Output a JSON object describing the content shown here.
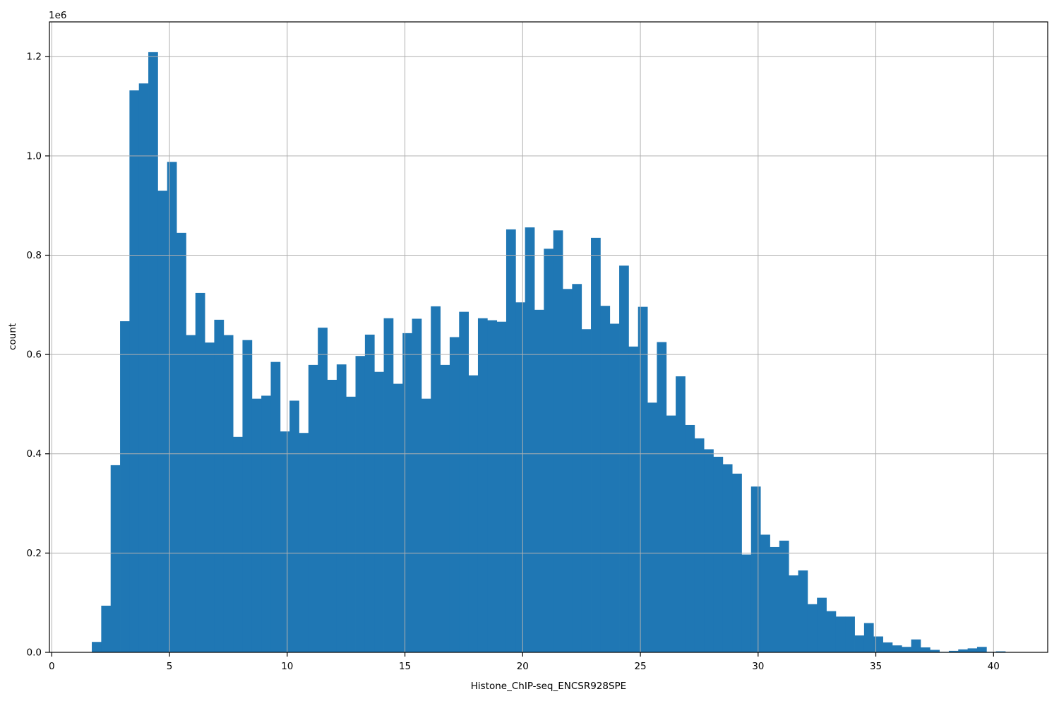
{
  "chart_data": {
    "type": "bar",
    "subtype": "histogram",
    "title": "",
    "xlabel": "Histone_ChIP-seq_ENCSR928SPE",
    "ylabel": "count",
    "y_axis_offset_text": "1e6",
    "x_tick_values": [
      0,
      5,
      10,
      15,
      20,
      25,
      30,
      35,
      40
    ],
    "x_tick_labels": [
      "0",
      "5",
      "10",
      "15",
      "20",
      "25",
      "30",
      "35",
      "40"
    ],
    "y_tick_values": [
      0,
      200000,
      400000,
      600000,
      800000,
      1000000,
      1200000
    ],
    "y_tick_labels": [
      "0.0",
      "0.2",
      "0.4",
      "0.6",
      "0.8",
      "1.0",
      "1.2"
    ],
    "xlim": [
      -0.1,
      42.3
    ],
    "ylim": [
      0,
      1270000
    ],
    "grid": true,
    "grid_above_bars": true,
    "legend": false,
    "bar_color": "#1f77b4",
    "grid_color": "#b0b0b0",
    "spine_color": "#000000",
    "bins": {
      "start": 1.7,
      "width": 0.4
    },
    "counts": [
      21000,
      94000,
      377000,
      667000,
      1132000,
      1146000,
      1209000,
      930000,
      988000,
      845000,
      639000,
      724000,
      624000,
      670000,
      639000,
      434000,
      629000,
      511000,
      517000,
      585000,
      445000,
      507000,
      442000,
      579000,
      654000,
      549000,
      580000,
      515000,
      597000,
      640000,
      565000,
      673000,
      541000,
      643000,
      672000,
      511000,
      697000,
      579000,
      635000,
      686000,
      558000,
      673000,
      669000,
      666000,
      852000,
      705000,
      856000,
      690000,
      813000,
      850000,
      732000,
      742000,
      651000,
      835000,
      698000,
      662000,
      779000,
      616000,
      696000,
      503000,
      625000,
      477000,
      556000,
      458000,
      431000,
      409000,
      394000,
      379000,
      360000,
      197000,
      334000,
      237000,
      212000,
      225000,
      155000,
      165000,
      97000,
      110000,
      83000,
      72000,
      72000,
      34000,
      59000,
      32000,
      20000,
      14000,
      11000,
      26000,
      10000,
      5000,
      1000,
      3000,
      6000,
      8000,
      11000,
      1000,
      2000
    ]
  }
}
